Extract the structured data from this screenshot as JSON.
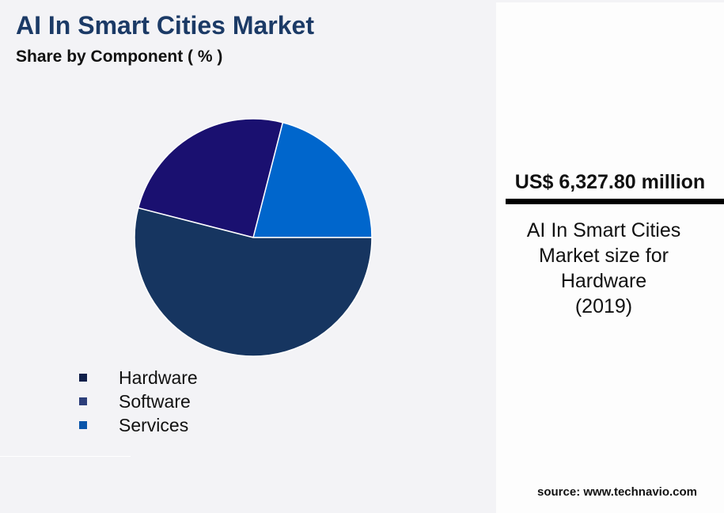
{
  "title": "AI In Smart Cities Market",
  "subtitle": "Share by Component ( % )",
  "chart_data": {
    "type": "pie",
    "title": "AI In Smart Cities Market",
    "subtitle": "Share by Component ( % )",
    "categories": [
      "Hardware",
      "Software",
      "Services"
    ],
    "values": [
      54,
      25,
      21
    ],
    "colors": [
      "#163560",
      "#1a1070",
      "#0066cc"
    ],
    "legend_colors": [
      "#0f1f4a",
      "#2c3e7a",
      "#0a55aa"
    ],
    "legend_placement": "bottom-left"
  },
  "panel": {
    "value": "US$ 6,327.80 million",
    "description_lines": [
      "AI In Smart Cities",
      "Market size for",
      "Hardware",
      "(2019)"
    ]
  },
  "source": "source: www.technavio.com"
}
